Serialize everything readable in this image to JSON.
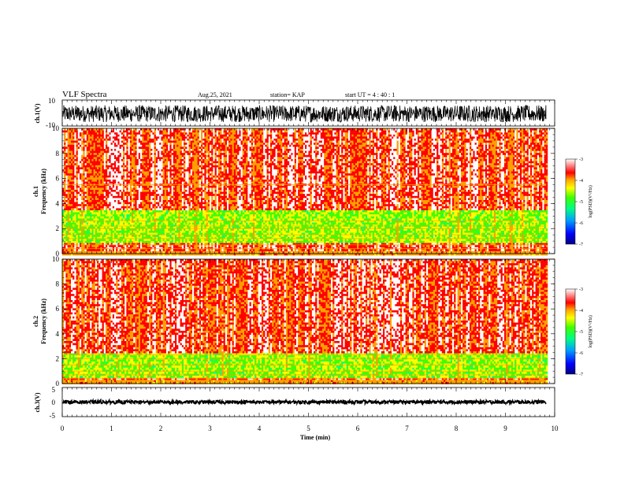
{
  "header": {
    "title": "VLF Spectra",
    "date": "Aug.25, 2021",
    "station": "station= KAP",
    "start_ut": "start UT =  4 : 40 : 1"
  },
  "chart_data": [
    {
      "type": "line",
      "name": "ch1_waveform",
      "ylabel": "ch.1(V)",
      "ylim": [
        -10,
        10
      ],
      "yticks": [
        "10",
        "-10"
      ],
      "xlim": [
        0,
        10
      ],
      "x_extent_min": 9.83,
      "amplitude_range": [
        -7,
        6
      ]
    },
    {
      "type": "heatmap",
      "name": "ch1_spectrogram",
      "ylabel": "ch.1\nFrequency (kHz)",
      "ylim": [
        0,
        10
      ],
      "yticks": [
        "0",
        "2",
        "4",
        "6",
        "8",
        "10"
      ],
      "xlim": [
        0,
        10
      ],
      "x_extent_min": 9.83,
      "background_level": -3.7,
      "noise_band_khz": [
        1.0,
        3.5
      ],
      "hum_lines_khz": [
        0.4,
        0.7,
        1.2,
        1.5,
        2.0,
        2.2,
        2.6,
        5.5
      ],
      "colorbar": {
        "label": "log(PSD)(V²/Hz)",
        "range": [
          -7,
          -3
        ],
        "ticks": [
          "-3",
          "-4",
          "-5",
          "-6",
          "-7"
        ]
      }
    },
    {
      "type": "heatmap",
      "name": "ch2_spectrogram",
      "ylabel": "ch.2\nFrequency (kHz)",
      "ylim": [
        0,
        10
      ],
      "yticks": [
        "0",
        "2",
        "4",
        "6",
        "8",
        "10"
      ],
      "xlim": [
        0,
        10
      ],
      "x_extent_min": 9.83,
      "background_level": -3.7,
      "noise_band_khz": [
        0.5,
        2.5
      ],
      "hum_lines_khz": [
        0.4,
        0.7,
        1.0,
        1.5,
        2.0,
        2.3
      ],
      "colorbar": {
        "label": "log(PSD)(V²/Hz)",
        "range": [
          -7,
          -3
        ],
        "ticks": [
          "-3",
          "-4",
          "-5",
          "-6",
          "-7"
        ]
      }
    },
    {
      "type": "line",
      "name": "ch3_waveform",
      "ylabel": "ch.3(V)",
      "ylim": [
        -5,
        5
      ],
      "yticks": [
        "5",
        "0",
        "-5"
      ],
      "xlim": [
        0,
        10
      ],
      "x_extent_min": 9.83,
      "level": 0,
      "amplitude_range": [
        -0.6,
        0.6
      ]
    }
  ],
  "x_axis": {
    "label": "Time (min)",
    "ticks": [
      "0",
      "1",
      "2",
      "3",
      "4",
      "5",
      "6",
      "7",
      "8",
      "9",
      "10"
    ]
  },
  "colors": {
    "colormap": [
      "#000080",
      "#0000ff",
      "#00a0ff",
      "#00ff80",
      "#40ff00",
      "#ffff00",
      "#ffa000",
      "#ff0000",
      "#ffffff"
    ],
    "waveform": "#000000"
  }
}
